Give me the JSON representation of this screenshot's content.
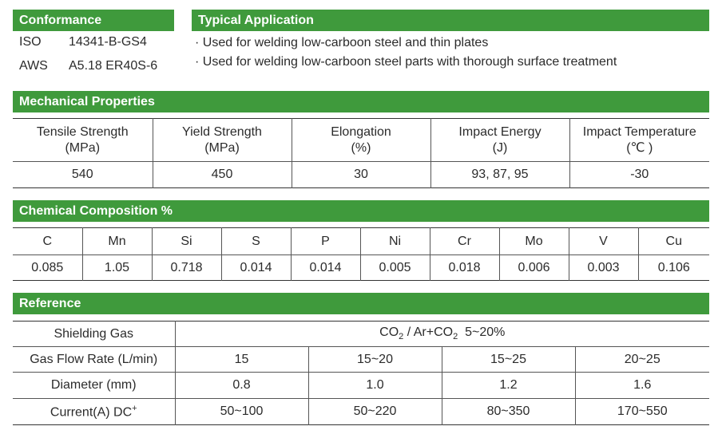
{
  "conformance": {
    "title": "Conformance",
    "rows": [
      {
        "key": "ISO",
        "value": "14341-B-GS4"
      },
      {
        "key": "AWS",
        "value": "A5.18 ER40S-6"
      }
    ]
  },
  "typical_application": {
    "title": "Typical Application",
    "items": [
      "· Used for welding low-carboon steel and thin plates",
      "· Used for welding low-carboon steel parts with thorough surface treatment"
    ]
  },
  "mechanical": {
    "title": "Mechanical Properties",
    "headers": [
      {
        "name": "Tensile Strength",
        "unit": "(MPa)"
      },
      {
        "name": "Yield Strength",
        "unit": "(MPa)"
      },
      {
        "name": "Elongation",
        "unit": "(%)"
      },
      {
        "name": "Impact Energy",
        "unit": "(J)"
      },
      {
        "name": "Impact Temperature",
        "unit": "(℃ )"
      }
    ],
    "values": [
      "540",
      "450",
      "30",
      "93, 87, 95",
      "-30"
    ]
  },
  "chemical": {
    "title": "Chemical Composition %",
    "elements": [
      "C",
      "Mn",
      "Si",
      "S",
      "P",
      "Ni",
      "Cr",
      "Mo",
      "V",
      "Cu"
    ],
    "values": [
      "0.085",
      "1.05",
      "0.718",
      "0.014",
      "0.014",
      "0.005",
      "0.018",
      "0.006",
      "0.003",
      "0.106"
    ]
  },
  "reference": {
    "title": "Reference",
    "shielding_gas_label": "Shielding Gas",
    "shielding_gas": {
      "co": "CO",
      "sub1": "2",
      "mid": " / Ar+CO",
      "sub2": "2",
      "range": "  5~20%"
    },
    "gas_flow_label": "Gas Flow Rate (L/min)",
    "gas_flow": [
      "15",
      "15~20",
      "15~25",
      "20~25"
    ],
    "diameter_label": "Diameter (mm)",
    "diameter": [
      "0.8",
      "1.0",
      "1.2",
      "1.6"
    ],
    "current_label": "Current(A) DC",
    "current_sup": "+",
    "current": [
      "50~100",
      "50~220",
      "80~350",
      "170~550"
    ]
  }
}
